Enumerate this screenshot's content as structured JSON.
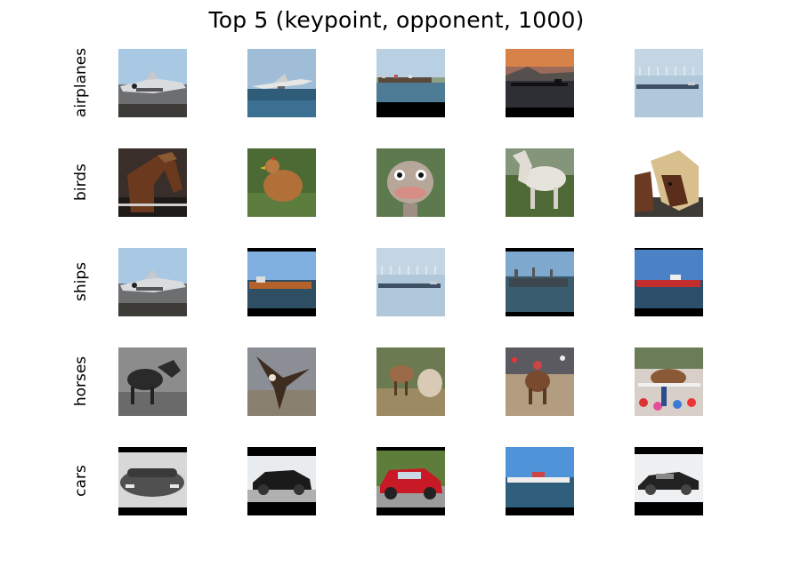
{
  "title": "Top 5 (keypoint, opponent, 1000)",
  "rows": [
    {
      "label": "airplanes",
      "images": [
        "fighter-jet-on-tarmac",
        "airliner-over-water",
        "cargo-ship-horizon",
        "ship-sunset-silhouette",
        "ship-with-wind-turbines"
      ]
    },
    {
      "label": "birds",
      "images": [
        "brown-horse",
        "brown-hen-on-grass",
        "ostrich-head-closeup",
        "white-horse-in-field",
        "two-ponies"
      ]
    },
    {
      "label": "ships",
      "images": [
        "fighter-jet-on-tarmac",
        "tanker-ship-framed",
        "ship-with-wind-turbines",
        "tanker-ship-coast",
        "red-cargo-ship"
      ]
    },
    {
      "label": "horses",
      "images": [
        "pony-grayscale",
        "eagle-landing",
        "horses-in-field",
        "rodeo-horse",
        "parade-horses-crowd"
      ]
    },
    {
      "label": "cars",
      "images": [
        "concept-car-grayscale",
        "black-hatchback",
        "red-pt-cruiser",
        "ship-at-harbor",
        "black-sports-car"
      ]
    }
  ]
}
